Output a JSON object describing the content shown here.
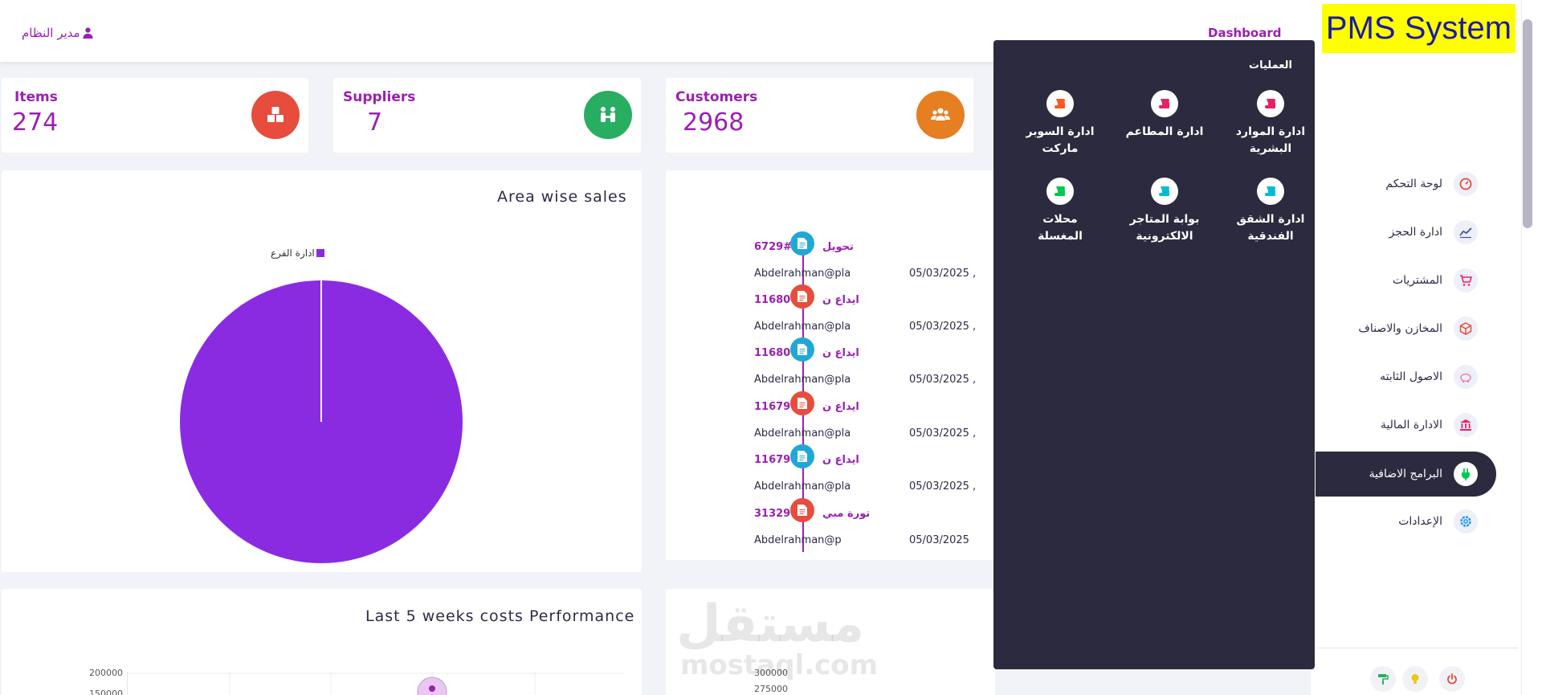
{
  "header": {
    "admin_label": "مدير النظام",
    "dashboard_link": "Dashboard"
  },
  "stats": [
    {
      "title": "Items",
      "value": "274",
      "icon": "cubes-icon",
      "color": "#e74c3c"
    },
    {
      "title": "Suppliers",
      "value": "7",
      "icon": "handshake-icon",
      "color": "#27ae60"
    },
    {
      "title": "Customers",
      "value": "2968",
      "icon": "users-icon",
      "color": "#e67e22"
    }
  ],
  "area_sales": {
    "title": "Area wise sales"
  },
  "timeline": {
    "items": [
      {
        "number": "6729#",
        "title": "تحويل",
        "user": "Abdelrahman@plaz",
        "date": "05/03/2025 ,",
        "color": "#1fa8d6"
      },
      {
        "number": "11680#",
        "title": "ايداع ن",
        "user": "Abdelrahman@plaz",
        "date": "05/03/2025 ,",
        "color": "#e74c3c"
      },
      {
        "number": "11680#",
        "title": "ايداع ن",
        "user": "Abdelrahman@plaz",
        "date": "05/03/2025 ,",
        "color": "#1fa8d6"
      },
      {
        "number": "11679#",
        "title": "ايداع ن",
        "user": "Abdelrahman@plaz",
        "date": "05/03/2025 ,",
        "color": "#e74c3c"
      },
      {
        "number": "11679#",
        "title": "ايداع ن",
        "user": "Abdelrahman@plaz",
        "date": "05/03/2025 ,",
        "color": "#1fa8d6"
      },
      {
        "number": "31329#",
        "title": "فاتورة مبي",
        "user": "Abdelrahman@p",
        "date": "05/03/2025",
        "color": "#e74c3c"
      }
    ]
  },
  "costs_chart": {
    "title": "Last 5 weeks costs Performance"
  },
  "chart_data": [
    {
      "type": "pie",
      "title": "Area wise sales",
      "categories": [
        "ادارة الفرع"
      ],
      "values": [
        100
      ],
      "colors": [
        "#8a2be2"
      ],
      "legend": "top"
    },
    {
      "type": "line",
      "title": "Last 5 weeks costs Performance",
      "y_tick_labels": [
        "200000",
        "150000"
      ]
    },
    {
      "type": "line",
      "y_tick_labels": [
        "300000",
        "275000"
      ]
    }
  ],
  "watermark": {
    "ar": "مستقل",
    "en": "mostaql.com"
  },
  "ops_menu": {
    "heading": "العمليات",
    "items": [
      {
        "line1": "ادارة الموارد",
        "line2": "البشرية",
        "color": "#e91e63"
      },
      {
        "line1": "ادارة المطاعم",
        "line2": "",
        "color": "#e91e63"
      },
      {
        "line1": "ادارة السوبر",
        "line2": "ماركت",
        "color": "#ff5722"
      },
      {
        "line1": "ادارة الشقق",
        "line2": "الفندقية",
        "color": "#00bcd4"
      },
      {
        "line1": "بوابة المتاجر",
        "line2": "الالكترونية",
        "color": "#00bcd4"
      },
      {
        "line1": "محلات",
        "line2": "المغسلة",
        "color": "#00c853"
      }
    ]
  },
  "sidebar": {
    "logo": "PMS System",
    "items": [
      {
        "label": "لوحة التحكم",
        "icon": "gauge-icon"
      },
      {
        "label": "ادارة الحجز",
        "icon": "chart-line-icon"
      },
      {
        "label": "المشتريات",
        "icon": "cart-icon"
      },
      {
        "label": "المخازن والاصناف",
        "icon": "box-icon"
      },
      {
        "label": "الاصول الثابته",
        "icon": "piggy-bank-icon"
      },
      {
        "label": "الادارة المالية",
        "icon": "bank-icon"
      },
      {
        "label": "البرامج الاضافية",
        "icon": "plug-icon"
      },
      {
        "label": "الإعدادات",
        "icon": "settings-icon"
      }
    ]
  }
}
